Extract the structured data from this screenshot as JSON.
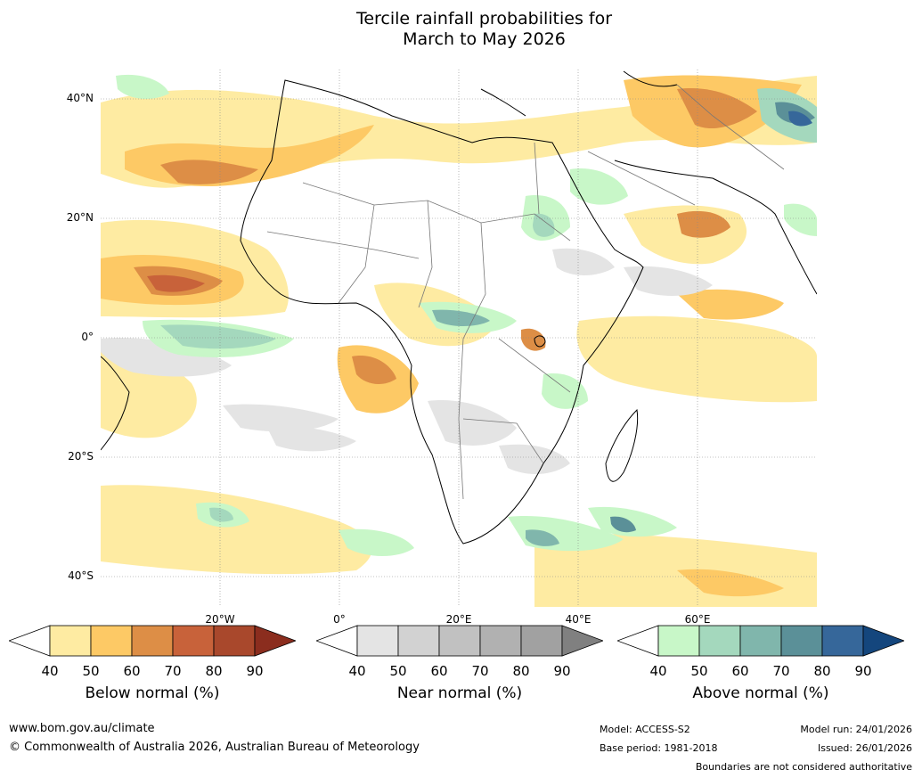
{
  "title": {
    "line1": "Tercile rainfall probabilities for",
    "line2": "March to May 2026"
  },
  "map": {
    "lat_labels": [
      "40°N",
      "20°N",
      "0°",
      "20°S",
      "40°S"
    ],
    "lon_labels": [
      "20°W",
      "0°",
      "20°E",
      "40°E",
      "60°E"
    ]
  },
  "legends": [
    {
      "name": "Below normal (%)",
      "ticks": [
        "40",
        "50",
        "60",
        "70",
        "80",
        "90"
      ],
      "colors": [
        "#ffffff",
        "#feeba2",
        "#fdc965",
        "#dd8e46",
        "#c8623a",
        "#a9482c",
        "#8b2d1e"
      ]
    },
    {
      "name": "Near normal (%)",
      "ticks": [
        "40",
        "50",
        "60",
        "70",
        "80",
        "90"
      ],
      "colors": [
        "#ffffff",
        "#e4e4e4",
        "#d2d2d2",
        "#c1c1c1",
        "#b1b1b1",
        "#a1a1a1",
        "#808080"
      ]
    },
    {
      "name": "Above normal (%)",
      "ticks": [
        "40",
        "50",
        "60",
        "70",
        "80",
        "90"
      ],
      "colors": [
        "#ffffff",
        "#c8f7c8",
        "#a4d8bd",
        "#80b6ac",
        "#5b9098",
        "#36679a",
        "#14467d"
      ]
    }
  ],
  "footer": {
    "url": "www.bom.gov.au/climate",
    "copyright": "© Commonwealth of Australia 2026, Australian Bureau of Meteorology",
    "model": "Model: ACCESS-S2",
    "base_period": "Base period: 1981-2018",
    "model_run": "Model run: 24/01/2026",
    "issued": "Issued: 26/01/2026",
    "disclaimer": "Boundaries are not considered authoritative"
  }
}
